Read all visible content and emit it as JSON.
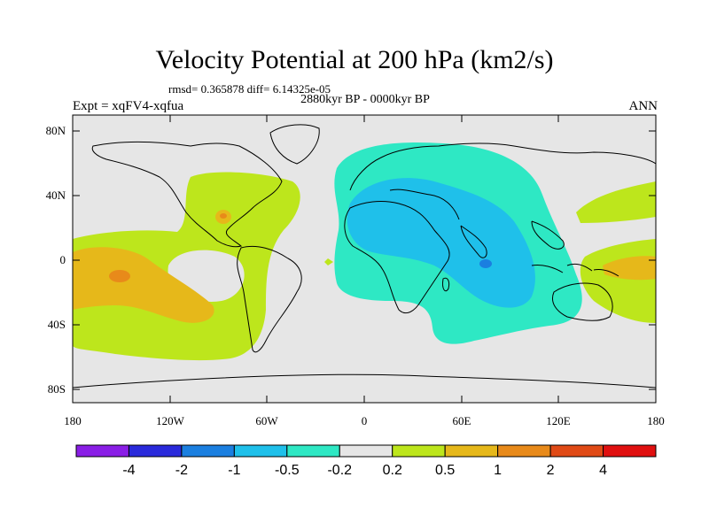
{
  "header": {
    "title": "Velocity Potential at 200 hPa (km2/s)",
    "stats": "rmsd= 0.365878 diff= 6.14325e-05",
    "period": "2880kyr BP - 0000kyr BP",
    "experiment": "Expt = xqFV4-xqfua",
    "season": "ANN"
  },
  "axes": {
    "lat_labels": [
      "80N",
      "40N",
      "0",
      "40S",
      "80S"
    ],
    "lon_labels": [
      "180",
      "120W",
      "60W",
      "0",
      "60E",
      "120E",
      "180"
    ]
  },
  "colorbar": {
    "labels": [
      "-4",
      "-2",
      "-1",
      "-0.5",
      "-0.2",
      "0.2",
      "0.5",
      "1",
      "2",
      "4"
    ],
    "colors": [
      "#8a1ee6",
      "#2a2adb",
      "#1b7fe0",
      "#1fc0ea",
      "#2ee8c4",
      "#e6e6e6",
      "#bde61c",
      "#e6b81a",
      "#e88a1a",
      "#e04a16",
      "#e01010"
    ]
  },
  "map_colors": {
    "land_outline": "#000000",
    "background": "#e6e6e6"
  }
}
